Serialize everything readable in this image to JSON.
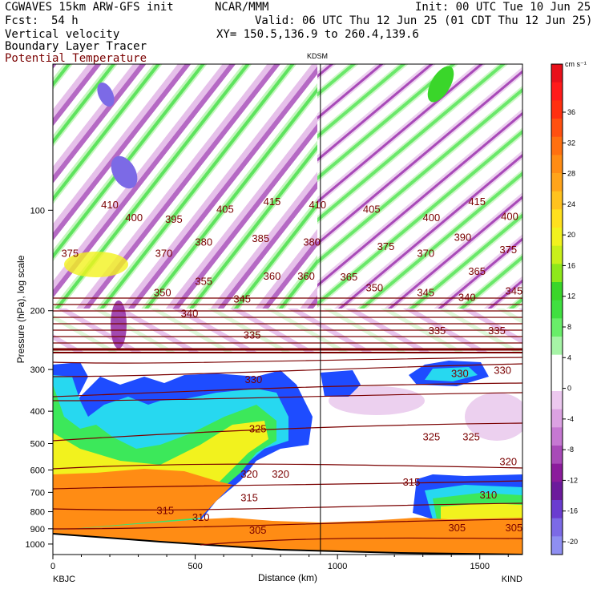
{
  "header": {
    "model": "CGWAVES 15km ARW-GFS init",
    "source": "NCAR/MMM",
    "init": "Init: 00 UTC Tue 10 Jun 25",
    "fcst_label": "Fcst:",
    "fcst_value": "54 h",
    "valid": "Valid: 06 UTC Thu 12 Jun 25 (01 CDT Thu 12 Jun 25)",
    "xy": "XY= 150.5,136.9 to 260.4,139.6",
    "fields": [
      "Vertical velocity",
      "Boundary Layer Tracer",
      "Potential Temperature"
    ]
  },
  "colors": {
    "theta": "#7a0000",
    "field_label_theta": "#7a0000",
    "boundary_layer_ramp": [
      "#1e4cff",
      "#27d8f0",
      "#3ce85a",
      "#f2f21e",
      "#ffa41a",
      "#ff7a14"
    ],
    "updraft_green": "#69ee69",
    "downdraft_purple": "#8b1c9c",
    "downdraft_pink": "#e4b3e9",
    "terrain": "#000000"
  },
  "chart_data": {
    "type": "heatmap",
    "station_marker": "KDSM",
    "station_x_km": 940,
    "xlabel": "Distance (km)",
    "ylabel": "Pressure (hPa), log scale",
    "xlim": [
      0,
      1650
    ],
    "x_ticks": [
      0,
      500,
      1000,
      1500
    ],
    "y_scale": "log",
    "y_ticks": [
      100,
      200,
      300,
      400,
      500,
      600,
      700,
      800,
      900,
      1000
    ],
    "x_end_labels": [
      "KBJC",
      "KIND"
    ],
    "colorbar": {
      "unit": "cm s⁻¹",
      "labels": [
        "36",
        "32",
        "28",
        "24",
        "20",
        "16",
        "12",
        "8",
        "4",
        "0",
        "-4",
        "-8",
        "-12",
        "-16",
        "-20"
      ],
      "colors": [
        "#e8101a",
        "#ff1a1a",
        "#ff3010",
        "#ff5010",
        "#ff7010",
        "#ff8c14",
        "#ffa41a",
        "#ffc21e",
        "#ffe01e",
        "#f2f21e",
        "#c9f01a",
        "#8ee81a",
        "#3ad62a",
        "#40e040",
        "#69ee69",
        "#a6f4a6",
        "#ffffff",
        "#ffffff",
        "#ecc8ef",
        "#dca2e2",
        "#c678d2",
        "#a84ab8",
        "#8b1c9c",
        "#6c1a9c",
        "#6a3cd0",
        "#7c6ae6",
        "#8f8ff2"
      ]
    },
    "theta_contours": [
      {
        "label": "410",
        "x_km": 200,
        "p": 96
      },
      {
        "label": "415",
        "x_km": 770,
        "p": 94
      },
      {
        "label": "410",
        "x_km": 930,
        "p": 96
      },
      {
        "label": "415",
        "x_km": 1490,
        "p": 94
      },
      {
        "label": "400",
        "x_km": 285,
        "p": 105
      },
      {
        "label": "395",
        "x_km": 425,
        "p": 106
      },
      {
        "label": "405",
        "x_km": 605,
        "p": 99
      },
      {
        "label": "405",
        "x_km": 1120,
        "p": 99
      },
      {
        "label": "400",
        "x_km": 1330,
        "p": 105
      },
      {
        "label": "400",
        "x_km": 1605,
        "p": 104
      },
      {
        "label": "375",
        "x_km": 60,
        "p": 134
      },
      {
        "label": "370",
        "x_km": 390,
        "p": 134
      },
      {
        "label": "380",
        "x_km": 530,
        "p": 124
      },
      {
        "label": "385",
        "x_km": 730,
        "p": 121
      },
      {
        "label": "380",
        "x_km": 910,
        "p": 124
      },
      {
        "label": "375",
        "x_km": 1170,
        "p": 128
      },
      {
        "label": "390",
        "x_km": 1440,
        "p": 120
      },
      {
        "label": "370",
        "x_km": 1310,
        "p": 134
      },
      {
        "label": "375",
        "x_km": 1600,
        "p": 131
      },
      {
        "label": "360",
        "x_km": 770,
        "p": 157
      },
      {
        "label": "360",
        "x_km": 890,
        "p": 157
      },
      {
        "label": "365",
        "x_km": 1040,
        "p": 158
      },
      {
        "label": "365",
        "x_km": 1490,
        "p": 152
      },
      {
        "label": "355",
        "x_km": 530,
        "p": 163
      },
      {
        "label": "350",
        "x_km": 385,
        "p": 176
      },
      {
        "label": "345",
        "x_km": 665,
        "p": 184
      },
      {
        "label": "350",
        "x_km": 1130,
        "p": 170
      },
      {
        "label": "345",
        "x_km": 1310,
        "p": 176
      },
      {
        "label": "340",
        "x_km": 1455,
        "p": 182
      },
      {
        "label": "345",
        "x_km": 1620,
        "p": 174
      },
      {
        "label": "340",
        "x_km": 480,
        "p": 203
      },
      {
        "label": "335",
        "x_km": 700,
        "p": 236
      },
      {
        "label": "335",
        "x_km": 1350,
        "p": 229
      },
      {
        "label": "335",
        "x_km": 1560,
        "p": 229
      },
      {
        "label": "330",
        "x_km": 705,
        "p": 320
      },
      {
        "label": "330",
        "x_km": 1430,
        "p": 307
      },
      {
        "label": "330",
        "x_km": 1580,
        "p": 301
      },
      {
        "label": "325",
        "x_km": 720,
        "p": 450
      },
      {
        "label": "325",
        "x_km": 1330,
        "p": 476
      },
      {
        "label": "325",
        "x_km": 1470,
        "p": 476
      },
      {
        "label": "320",
        "x_km": 690,
        "p": 615
      },
      {
        "label": "320",
        "x_km": 800,
        "p": 615
      },
      {
        "label": "320",
        "x_km": 1600,
        "p": 565
      },
      {
        "label": "315",
        "x_km": 395,
        "p": 790
      },
      {
        "label": "315",
        "x_km": 690,
        "p": 725
      },
      {
        "label": "315",
        "x_km": 1260,
        "p": 650
      },
      {
        "label": "310",
        "x_km": 520,
        "p": 830
      },
      {
        "label": "310",
        "x_km": 1530,
        "p": 710
      },
      {
        "label": "305",
        "x_km": 720,
        "p": 905
      },
      {
        "label": "305",
        "x_km": 1420,
        "p": 890
      },
      {
        "label": "305",
        "x_km": 1620,
        "p": 890
      }
    ]
  }
}
